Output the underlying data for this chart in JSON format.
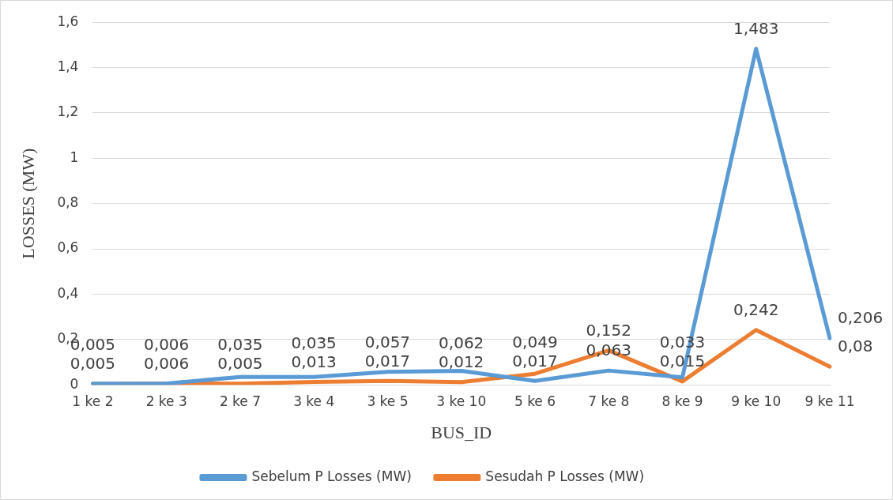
{
  "chart_data": {
    "type": "line",
    "xlabel": "BUS_ID",
    "ylabel": "LOSSES (MW)",
    "categories": [
      "1 ke 2",
      "2 ke 3",
      "2 ke 7",
      "3 ke 4",
      "3 ke 5",
      "3 ke 10",
      "5 ke 6",
      "7 ke 8",
      "8 ke 9",
      "9 ke 10",
      "9 ke 11"
    ],
    "series": [
      {
        "name": "Sebelum P Losses (MW)",
        "color": "#5b9bd5",
        "values": [
          0.005,
          0.006,
          0.035,
          0.035,
          0.057,
          0.062,
          0.017,
          0.063,
          0.033,
          1.483,
          0.206
        ],
        "value_labels": [
          "0,005",
          "0,006",
          "0,035",
          "0,035",
          "0,057",
          "0,062",
          "0,017",
          "0,063",
          "0,033",
          "1,483",
          "0,206"
        ]
      },
      {
        "name": "Sesudah P Losses (MW)",
        "color": "#ed7d31",
        "values": [
          0.005,
          0.006,
          0.005,
          0.013,
          0.017,
          0.012,
          0.049,
          0.152,
          0.015,
          0.242,
          0.08
        ],
        "value_labels": [
          "0,005",
          "0,006",
          "0,005",
          "0,013",
          "0,017",
          "0,012",
          "0,049",
          "0,152",
          "0,015",
          "0,242",
          "0,08"
        ]
      }
    ],
    "ylim": [
      0,
      1.6
    ],
    "yticks": [
      0,
      {
        "value": 0.2,
        "label": "0,2"
      },
      {
        "value": 0.4,
        "label": "0,4"
      },
      {
        "value": 0.6,
        "label": "0,6"
      },
      {
        "value": 0.8,
        "label": "0,8"
      },
      1,
      {
        "value": 1.2,
        "label": "1,2"
      },
      {
        "value": 1.4,
        "label": "1,4"
      },
      {
        "value": 1.6,
        "label": "1,6"
      }
    ],
    "grid": "y",
    "legend": "bottom",
    "marker": "none",
    "line_style": "solid"
  }
}
